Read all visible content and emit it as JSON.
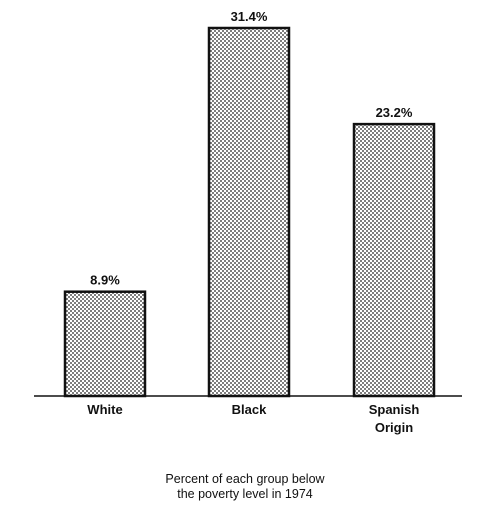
{
  "chart_data": {
    "type": "bar",
    "categories": [
      [
        "White"
      ],
      [
        "Black"
      ],
      [
        "Spanish",
        "Origin"
      ]
    ],
    "values": [
      8.9,
      31.4,
      23.2
    ],
    "value_labels": [
      "8.9%",
      "31.4%",
      "23.2%"
    ],
    "caption": [
      "Percent of each group below",
      "the poverty level in 1974"
    ],
    "ylim": [
      0,
      31.4
    ],
    "grid": false,
    "legend": "none",
    "bar_fill": "dotted",
    "colors": {
      "bar_edge": "#111111",
      "dot": "#222222",
      "background": "#ffffff"
    }
  }
}
